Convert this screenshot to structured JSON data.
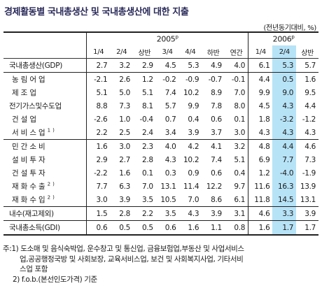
{
  "title": "경제활동별 국내총생산 및 국내총생산에 대한 지출",
  "unit": "(전년동기대비, %)",
  "years": [
    {
      "label": "2005",
      "sup": "p"
    },
    {
      "label": "2006",
      "sup": "p"
    }
  ],
  "columns": [
    "1/4",
    "2/4",
    "상반",
    "3/4",
    "4/4",
    "하반",
    "연간",
    "1/4",
    "2/4",
    "상반"
  ],
  "highlight_col": "2/4 (2006)",
  "rows": [
    {
      "label": "국내총생산(GDP)",
      "values": [
        "2.7",
        "3.2",
        "2.9",
        "4.5",
        "5.3",
        "4.9",
        "4.0",
        "6.1",
        "5.3",
        "5.7"
      ]
    },
    {
      "label": "농림어업",
      "values": [
        "-2.1",
        "2.6",
        "1.2",
        "-0.2",
        "-0.9",
        "-0.7",
        "-0.1",
        "4.4",
        "0.5",
        "1.6"
      ]
    },
    {
      "label": "제조업",
      "values": [
        "5.1",
        "5.0",
        "5.1",
        "7.4",
        "10.2",
        "8.9",
        "7.0",
        "9.9",
        "9.0",
        "9.5"
      ]
    },
    {
      "label": "전기가스및수도업",
      "values": [
        "8.8",
        "7.3",
        "8.1",
        "5.7",
        "9.9",
        "7.8",
        "8.0",
        "4.5",
        "4.3",
        "4.4"
      ]
    },
    {
      "label": "건설업",
      "values": [
        "-2.6",
        "1.0",
        "-0.4",
        "0.7",
        "0.4",
        "0.6",
        "0.1",
        "1.8",
        "-3.2",
        "-1.2"
      ]
    },
    {
      "label": "서비스업",
      "sup": "1)",
      "values": [
        "2.2",
        "2.5",
        "2.4",
        "3.4",
        "3.9",
        "3.7",
        "3.0",
        "4.3",
        "4.3",
        "4.3"
      ]
    },
    {
      "label": "민간소비",
      "values": [
        "1.6",
        "3.0",
        "2.3",
        "4.0",
        "4.2",
        "4.1",
        "3.2",
        "4.8",
        "4.4",
        "4.6"
      ]
    },
    {
      "label": "설비투자",
      "values": [
        "2.9",
        "2.7",
        "2.8",
        "4.3",
        "10.2",
        "7.4",
        "5.1",
        "6.9",
        "7.7",
        "7.3"
      ]
    },
    {
      "label": "건설투자",
      "values": [
        "-2.2",
        "1.6",
        "0.1",
        "0.3",
        "0.9",
        "0.6",
        "0.4",
        "1.2",
        "-4.0",
        "-1.9"
      ]
    },
    {
      "label": "재화수출",
      "sup": "2)",
      "values": [
        "7.7",
        "6.3",
        "7.0",
        "13.1",
        "11.4",
        "12.2",
        "9.7",
        "11.6",
        "16.3",
        "13.9"
      ]
    },
    {
      "label": "재화수입",
      "sup": "2)",
      "values": [
        "3.0",
        "3.9",
        "3.5",
        "10.5",
        "7.0",
        "8.6",
        "6.1",
        "11.8",
        "14.5",
        "13.1"
      ]
    },
    {
      "label": "내수(재고제외)",
      "values": [
        "1.5",
        "2.8",
        "2.2",
        "3.5",
        "4.3",
        "3.9",
        "3.1",
        "4.6",
        "3.3",
        "3.9"
      ]
    },
    {
      "label": "국내총소득(GDI)",
      "values": [
        "0.6",
        "0.5",
        "0.5",
        "0.6",
        "1.6",
        "1.1",
        "0.8",
        "1.6",
        "1.7",
        "1.7"
      ]
    }
  ],
  "notes": {
    "n1_head": "주:1) 도소매 및 음식숙박업, 운수창고 및 통신업, 금융보험업,부동산 및 사업서비스",
    "n1_l2": "업,공공행정국방 및 사회보장, 교육서비스업, 보건 및 사회복지사업, 기타서비",
    "n1_l3": "스업 포함",
    "n2": "2) f.o.b.(본선인도가격) 기준"
  }
}
